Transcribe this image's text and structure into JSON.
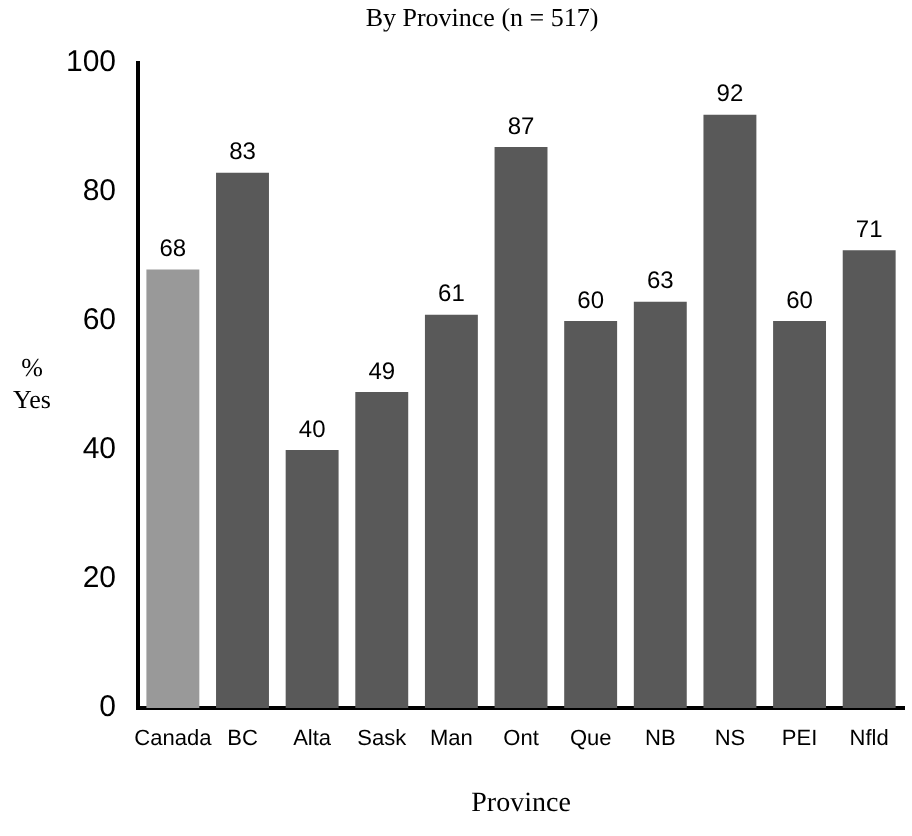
{
  "chart_data": {
    "type": "bar",
    "title": "By Province (n = 517)",
    "xlabel": "Province",
    "ylabel": "% Yes",
    "categories": [
      "Canada",
      "BC",
      "Alta",
      "Sask",
      "Man",
      "Ont",
      "Que",
      "NB",
      "NS",
      "PEI",
      "Nfld"
    ],
    "values": [
      68,
      83,
      40,
      49,
      61,
      87,
      60,
      63,
      92,
      60,
      71
    ],
    "colors": [
      "#999999",
      "#595959",
      "#595959",
      "#595959",
      "#595959",
      "#595959",
      "#595959",
      "#595959",
      "#595959",
      "#595959",
      "#595959"
    ],
    "ylim": [
      0,
      100
    ],
    "yticks": [
      0,
      20,
      40,
      60,
      80,
      100
    ],
    "grid": false,
    "legend": false,
    "data_labels": true
  }
}
